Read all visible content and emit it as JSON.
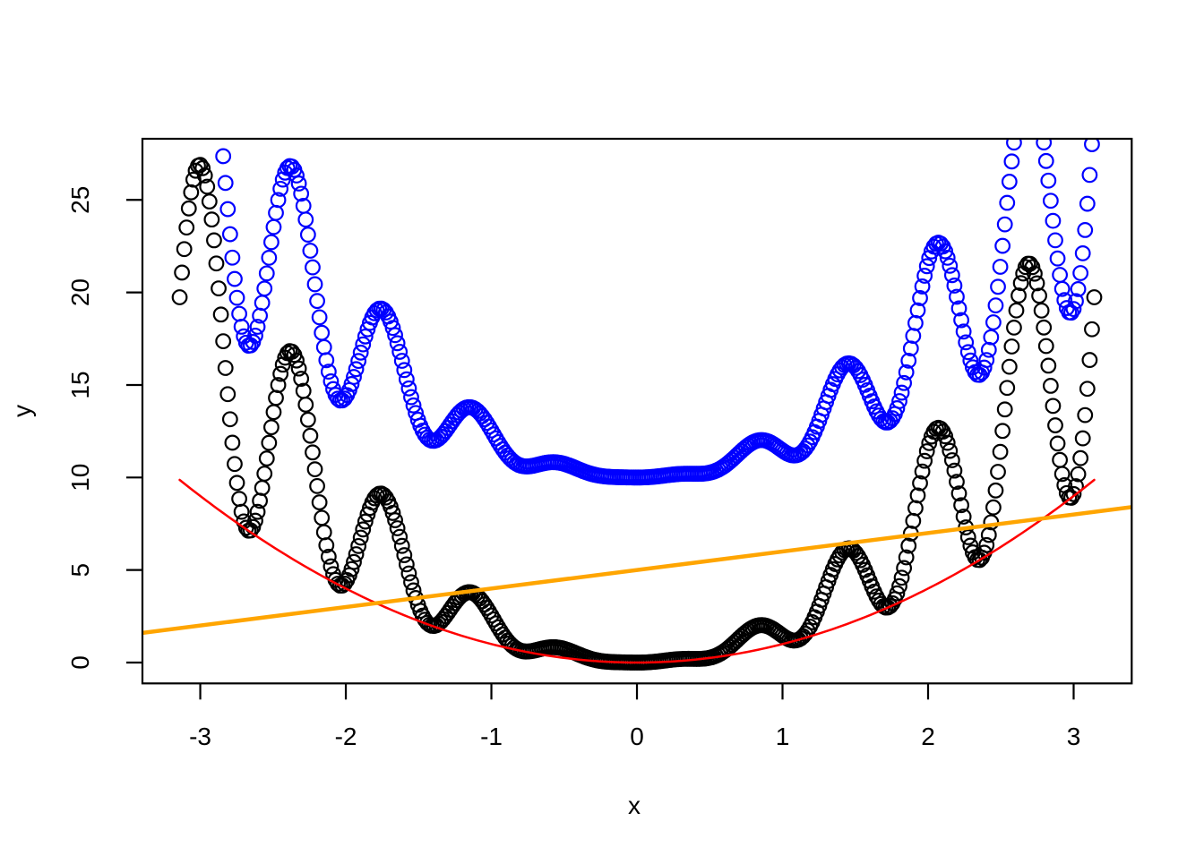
{
  "figure": {
    "background_color": "#FFFFFF",
    "box_border_color": "#000000",
    "title": ""
  },
  "chart_data": {
    "type": "scatter",
    "title": "",
    "xlabel": "x",
    "ylabel": "y",
    "xlim": [
      -3.3973,
      3.3989
    ],
    "ylim": [
      -1.127,
      28.303
    ],
    "x_ticks": [
      -3,
      -2,
      -1,
      0,
      1,
      2,
      3
    ],
    "y_ticks": [
      0,
      5,
      10,
      15,
      20,
      25
    ],
    "y_tick_label_rotation_deg": -90,
    "grid": false,
    "legend": "none",
    "series": [
      {
        "name": "black-scatter",
        "kind": "points",
        "marker": "open-circle",
        "color": "#000000",
        "formula": "y = x^2 * (2 + sin(10*x))",
        "js_expr": "x*x*(2+Math.sin(10*x))",
        "x_min": -3.14159265,
        "x_max": 3.14159265,
        "n": 400,
        "marker_radius_px": 7.8,
        "stroke_width_px": 2.2
      },
      {
        "name": "blue-scatter",
        "kind": "points",
        "marker": "open-circle",
        "color": "#0000FF",
        "formula": "y = x^2 * (2 + sin(10*x)) + 10",
        "js_expr": "x*x*(2+Math.sin(10*x))+10",
        "x_min": -3.14159265,
        "x_max": 3.14159265,
        "n": 400,
        "marker_radius_px": 7.8,
        "stroke_width_px": 2.2
      },
      {
        "name": "red-curve",
        "kind": "line",
        "color": "#FF0000",
        "formula": "y = x^2",
        "js_expr": "x*x",
        "x_min": -3.14159265,
        "x_max": 3.14159265,
        "n": 241,
        "stroke_width_px": 2.5
      },
      {
        "name": "orange-line",
        "kind": "line",
        "color": "#FFA500",
        "formula": "y = x + 5",
        "js_expr": "x+5",
        "x_min": -3.3973,
        "x_max": 3.3989,
        "n": 2,
        "stroke_width_px": 4.5
      }
    ],
    "key_points_read_from_plot": {
      "black_local_maxima": [
        [
          -3.0,
          26.9
        ],
        [
          -2.37,
          16.8
        ],
        [
          -1.74,
          9.1
        ],
        [
          -1.12,
          3.9
        ],
        [
          0.86,
          2.1
        ],
        [
          1.47,
          6.3
        ],
        [
          2.08,
          12.8
        ],
        [
          2.7,
          21.6
        ]
      ],
      "black_local_minima_on_red_parabola": [
        [
          -2.67,
          7.1
        ],
        [
          -2.05,
          4.2
        ],
        [
          -1.44,
          2.1
        ],
        [
          0.0,
          0.0
        ],
        [
          1.12,
          1.3
        ],
        [
          1.74,
          3.0
        ],
        [
          2.36,
          5.6
        ],
        [
          2.99,
          8.9
        ]
      ],
      "blue_equals_black_plus": 10,
      "red_endpoints": [
        [
          -3.1416,
          9.87
        ],
        [
          3.1416,
          9.87
        ]
      ],
      "orange_endpoints": [
        [
          -3.3973,
          1.6
        ],
        [
          3.3989,
          8.4
        ]
      ]
    }
  }
}
